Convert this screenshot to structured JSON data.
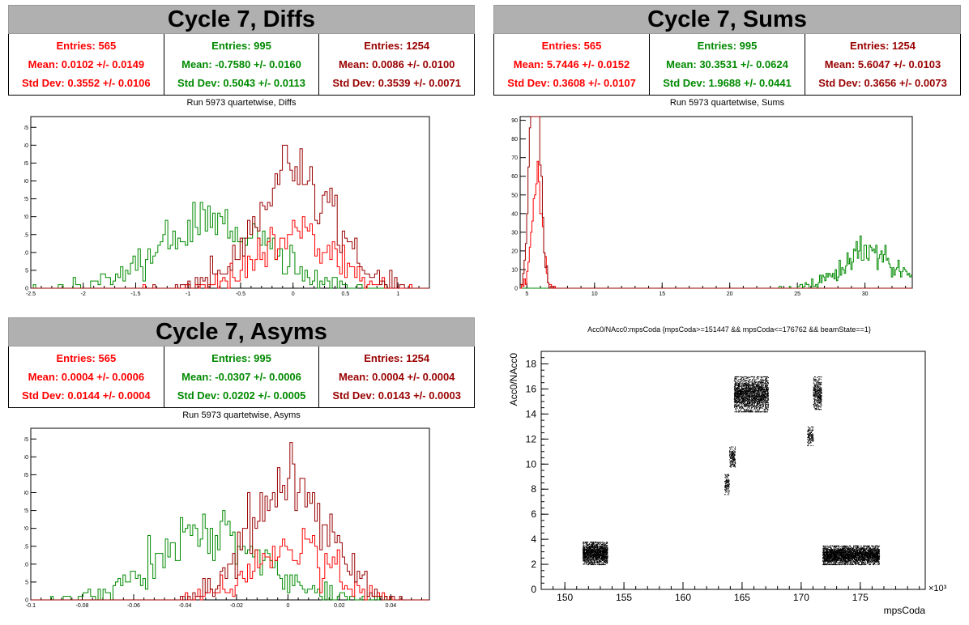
{
  "colors": {
    "red": "#ff0000",
    "green": "#008a00",
    "darkred": "#990000",
    "black": "#000000",
    "title_bg": "#b0b0b0"
  },
  "panels": {
    "diffs": {
      "title": "Cycle 7, Diffs",
      "subtitle": "Run 5973 quartetwise, Diffs",
      "stats": [
        {
          "entries": "Entries: 565",
          "mean": "Mean: 0.0102 +/- 0.0149",
          "std": "Std Dev: 0.3552 +/- 0.0106",
          "color": "#ff0000"
        },
        {
          "entries": "Entries: 995",
          "mean": "Mean: -0.7580 +/- 0.0160",
          "std": "Std Dev: 0.5043 +/- 0.0113",
          "color": "#008a00"
        },
        {
          "entries": "Entries: 1254",
          "mean": "Mean: 0.0086 +/- 0.0100",
          "std": "Std Dev: 0.3539 +/- 0.0071",
          "color": "#990000"
        }
      ]
    },
    "sums": {
      "title": "Cycle 7, Sums",
      "subtitle": "Run 5973 quartetwise, Sums",
      "stats": [
        {
          "entries": "Entries: 565",
          "mean": "Mean: 5.7446 +/- 0.0152",
          "std": "Std Dev: 0.3608 +/- 0.0107",
          "color": "#ff0000"
        },
        {
          "entries": "Entries: 995",
          "mean": "Mean: 30.3531 +/- 0.0624",
          "std": "Std Dev: 1.9688 +/- 0.0441",
          "color": "#008a00"
        },
        {
          "entries": "Entries: 1254",
          "mean": "Mean: 5.6047 +/- 0.0103",
          "std": "Std Dev: 0.3656 +/- 0.0073",
          "color": "#990000"
        }
      ]
    },
    "asyms": {
      "title": "Cycle 7, Asyms",
      "subtitle": "Run 5973 quartetwise, Asyms",
      "stats": [
        {
          "entries": "Entries: 565",
          "mean": "Mean: 0.0004 +/- 0.0006",
          "std": "Std Dev: 0.0144 +/- 0.0004",
          "color": "#ff0000"
        },
        {
          "entries": "Entries: 995",
          "mean": "Mean: -0.0307 +/- 0.0006",
          "std": "Std Dev: 0.0202 +/- 0.0005",
          "color": "#008a00"
        },
        {
          "entries": "Entries: 1254",
          "mean": "Mean: 0.0004 +/- 0.0004",
          "std": "Std Dev: 0.0143 +/- 0.0003",
          "color": "#990000"
        }
      ]
    },
    "scatter": {
      "title": "Acc0/NAcc0:mpsCoda {mpsCoda>=151447 && mpsCoda<=176762 && beamState==1}"
    }
  },
  "chart_data": [
    {
      "type": "histogram",
      "title": "Run 5973 quartetwise, Diffs",
      "xlim": [
        -2.5,
        1.3
      ],
      "ylim": [
        0,
        48
      ],
      "xticks": [
        -2.5,
        -2,
        -1.5,
        -1,
        -0.5,
        0,
        0.5,
        1
      ],
      "xtick_labels": [
        "-2.5",
        "-2",
        "-1.5",
        "-1",
        "-0.5",
        "0",
        "0.5",
        "1"
      ],
      "yticks": [
        0,
        5,
        10,
        15,
        20,
        25,
        30,
        35,
        40,
        45
      ],
      "series": [
        {
          "color": "#008a00",
          "entries": 995,
          "mean": -0.758,
          "std": 0.5043
        },
        {
          "color": "#ff0000",
          "entries": 565,
          "mean": 0.0102,
          "std": 0.3552
        },
        {
          "color": "#990000",
          "entries": 1254,
          "mean": 0.0086,
          "std": 0.3539
        }
      ]
    },
    {
      "type": "histogram",
      "title": "Run 5973 quartetwise, Sums",
      "xlim": [
        4.5,
        33.5
      ],
      "ylim": [
        0,
        92
      ],
      "xticks": [
        5,
        10,
        15,
        20,
        25,
        30
      ],
      "xtick_labels": [
        "5",
        "10",
        "15",
        "20",
        "25",
        "30"
      ],
      "yticks": [
        0,
        10,
        20,
        30,
        40,
        50,
        60,
        70,
        80,
        90
      ],
      "series": [
        {
          "color": "#008a00",
          "entries": 995,
          "mean": 30.3531,
          "std": 1.9688
        },
        {
          "color": "#ff0000",
          "entries": 565,
          "mean": 5.7446,
          "std": 0.3608
        },
        {
          "color": "#990000",
          "entries": 1254,
          "mean": 5.6047,
          "std": 0.3656
        }
      ]
    },
    {
      "type": "histogram",
      "title": "Run 5973 quartetwise, Asyms",
      "xlim": [
        -0.1,
        0.055
      ],
      "ylim": [
        0,
        48
      ],
      "xticks": [
        -0.1,
        -0.08,
        -0.06,
        -0.04,
        -0.02,
        0,
        0.02,
        0.04
      ],
      "xtick_labels": [
        "-0.1",
        "-0.08",
        "-0.06",
        "-0.04",
        "-0.02",
        "0",
        "0.02",
        "0.04"
      ],
      "yticks": [
        0,
        5,
        10,
        15,
        20,
        25,
        30,
        35,
        40,
        45
      ],
      "series": [
        {
          "color": "#008a00",
          "entries": 995,
          "mean": -0.0307,
          "std": 0.0202
        },
        {
          "color": "#ff0000",
          "entries": 565,
          "mean": 0.0004,
          "std": 0.0144
        },
        {
          "color": "#990000",
          "entries": 1254,
          "mean": 0.0004,
          "std": 0.0143
        }
      ]
    },
    {
      "type": "scatter",
      "title": "Acc0/NAcc0:mpsCoda {mpsCoda>=151447 && mpsCoda<=176762 && beamState==1}",
      "xlabel": "mpsCoda",
      "ylabel": "Acc0/NAcc0",
      "x_multiplier_label": "×10³",
      "xlim": [
        148,
        180.5
      ],
      "ylim": [
        0,
        19
      ],
      "xticks": [
        150,
        155,
        160,
        165,
        170,
        175
      ],
      "xtick_labels": [
        "150",
        "155",
        "160",
        "165",
        "170",
        "175"
      ],
      "yticks": [
        0,
        2,
        4,
        6,
        8,
        10,
        12,
        14,
        16,
        18
      ],
      "ytick_labels": [
        "0",
        "2",
        "4",
        "6",
        "8",
        "10",
        "12",
        "14",
        "16",
        "18"
      ],
      "clusters": [
        {
          "x": [
            151.5,
            153.6
          ],
          "y": [
            2.0,
            3.8
          ],
          "n": 1600
        },
        {
          "x": [
            163.5,
            163.9
          ],
          "y": [
            7.6,
            9.2
          ],
          "n": 120
        },
        {
          "x": [
            163.9,
            164.4
          ],
          "y": [
            9.8,
            11.4
          ],
          "n": 180
        },
        {
          "x": [
            164.3,
            167.2
          ],
          "y": [
            14.2,
            17.0
          ],
          "n": 2200
        },
        {
          "x": [
            170.5,
            171.0
          ],
          "y": [
            11.5,
            13.0
          ],
          "n": 150
        },
        {
          "x": [
            171.0,
            171.7
          ],
          "y": [
            14.4,
            17.0
          ],
          "n": 400
        },
        {
          "x": [
            171.8,
            176.6
          ],
          "y": [
            2.0,
            3.5
          ],
          "n": 3200
        }
      ]
    }
  ]
}
